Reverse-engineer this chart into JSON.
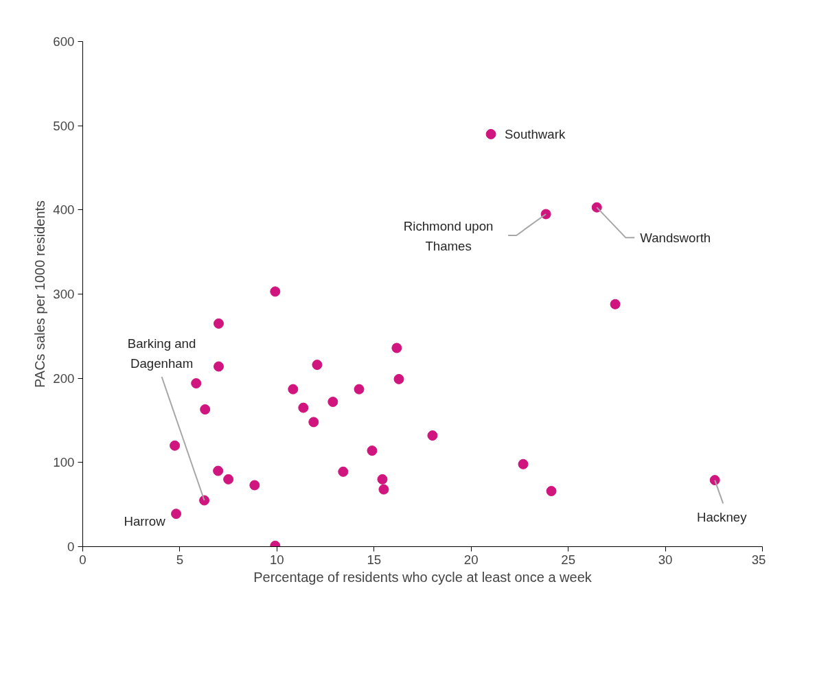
{
  "chart_data": {
    "type": "scatter",
    "xlabel": "Percentage of residents who cycle at least once a week",
    "ylabel": "PACs sales per 1000 residents",
    "x": [
      21.02,
      23.85,
      26.47,
      27.42,
      9.91,
      7.0,
      7.0,
      5.84,
      6.3,
      4.74,
      4.81,
      6.26,
      6.97,
      7.5,
      8.85,
      9.91,
      10.83,
      11.36,
      12.07,
      11.89,
      12.88,
      14.23,
      16.17,
      16.28,
      13.41,
      14.9,
      15.43,
      15.5,
      18.01,
      22.68,
      24.13,
      32.55
    ],
    "series": [
      {
        "color": "#d0157f",
        "values": [
          490,
          395,
          403,
          288,
          303,
          265,
          214,
          194,
          163,
          120,
          39,
          55,
          90,
          80,
          73,
          1,
          187,
          165,
          216,
          148,
          172,
          187,
          236,
          199,
          89,
          114,
          80,
          68,
          132,
          98,
          66,
          79
        ]
      }
    ],
    "xlim": [
      0,
      35
    ],
    "xticks": [
      0,
      5,
      10,
      15,
      20,
      25,
      30,
      35
    ],
    "ylim": [
      0,
      600
    ],
    "yticks": [
      0,
      100,
      200,
      300,
      400,
      500,
      600
    ],
    "grid": false,
    "marker": "circle",
    "annotations": [
      {
        "text": "Southwark",
        "x": 21.02,
        "y": 490
      },
      {
        "text": "Richmond upon\nThames",
        "x": 23.85,
        "y": 395
      },
      {
        "text": "Wandsworth",
        "x": 26.47,
        "y": 403
      },
      {
        "text": "Barking and\nDagenham",
        "x": 6.26,
        "y": 55
      },
      {
        "text": "Harrow",
        "x": 4.81,
        "y": 39
      },
      {
        "text": "Hackney",
        "x": 32.55,
        "y": 79
      }
    ]
  }
}
